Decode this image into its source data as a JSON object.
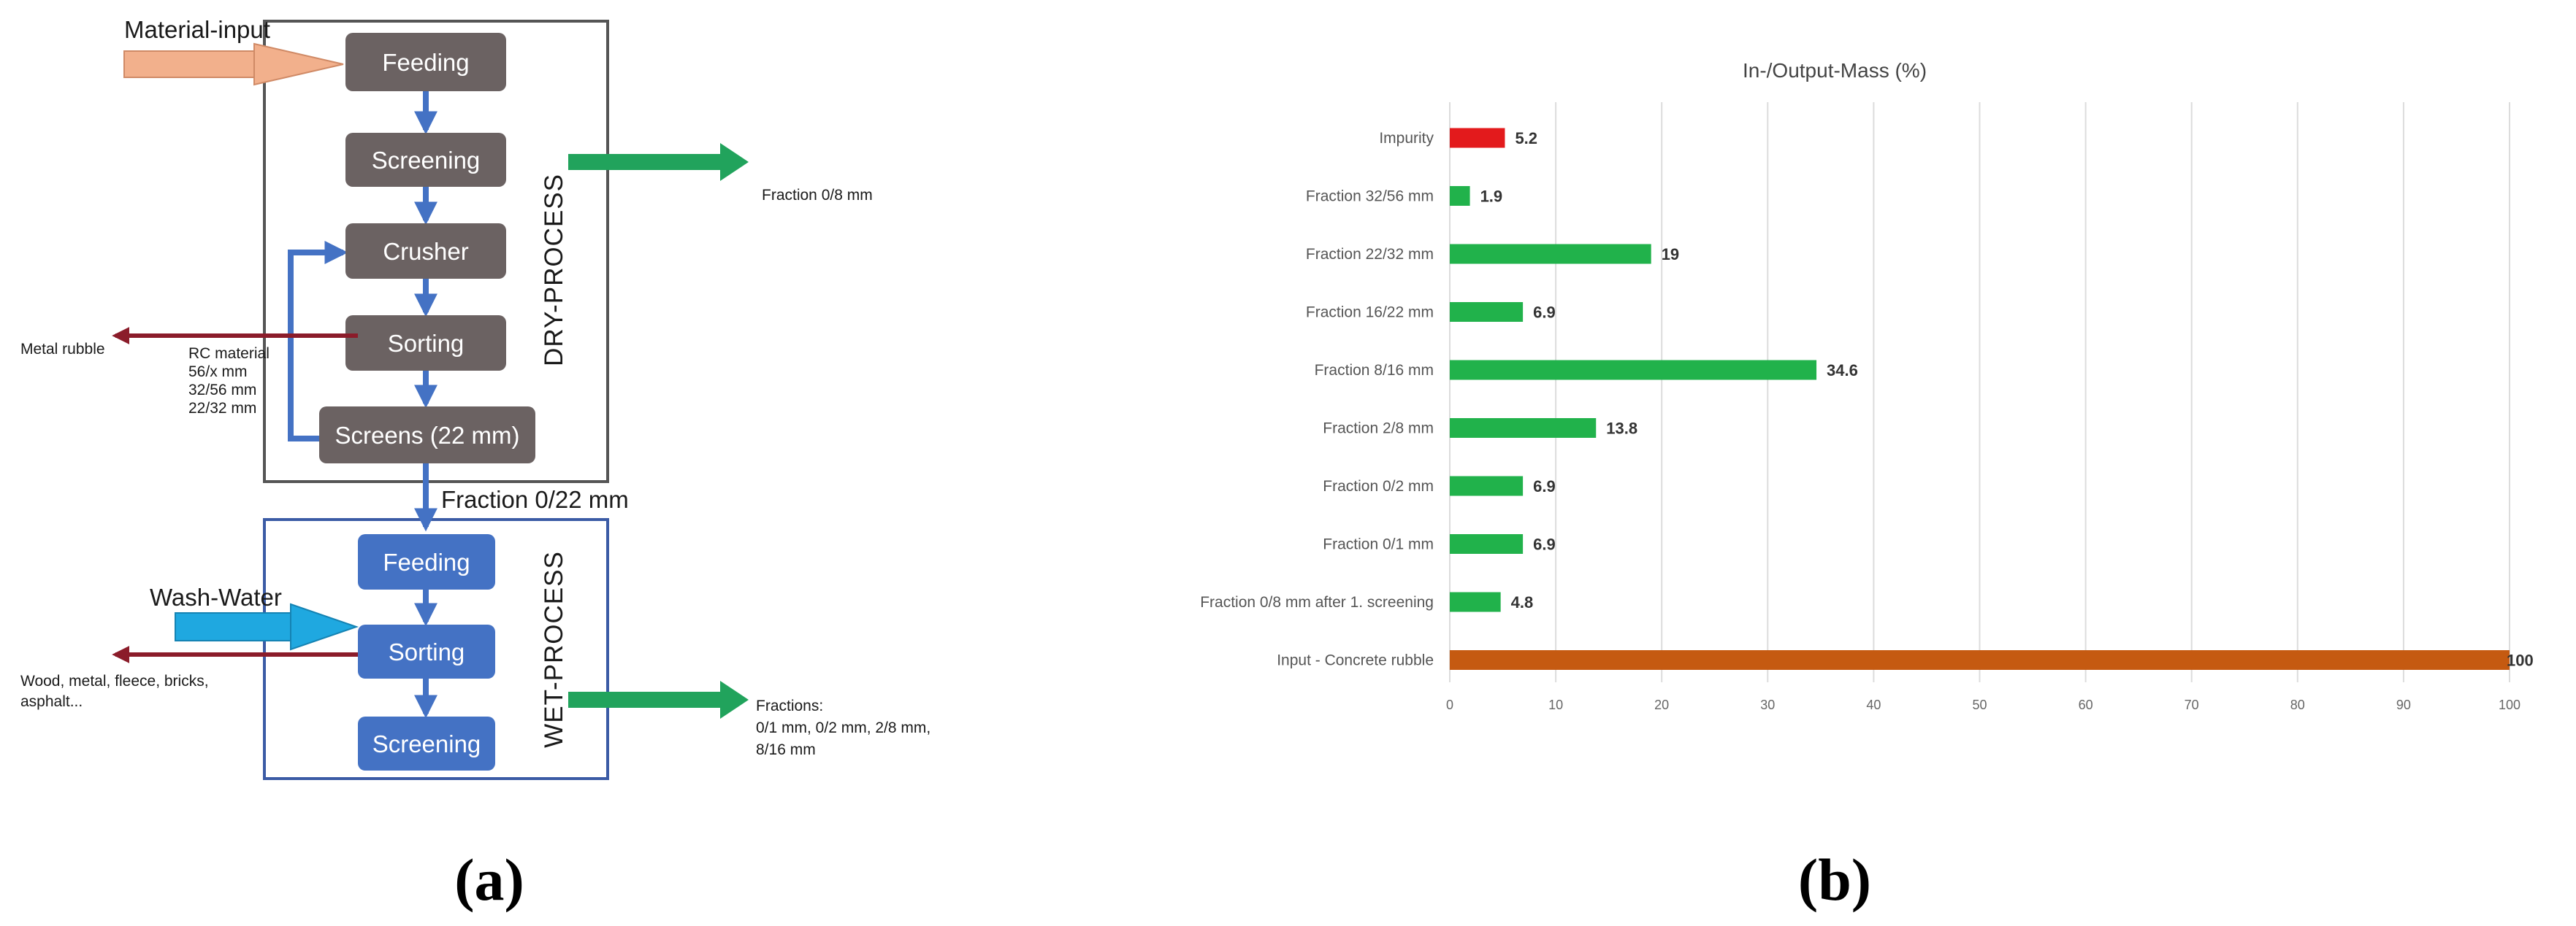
{
  "flowchart": {
    "inputs": {
      "material": "Material-input",
      "wash_water": "Wash-Water"
    },
    "dry_process": {
      "label": "DRY-PROCESS",
      "steps": [
        "Feeding",
        "Screening",
        "Crusher",
        "Sorting",
        "Screens (22 mm)"
      ]
    },
    "wet_process": {
      "label": "WET-PROCESS",
      "steps": [
        "Feeding",
        "Sorting",
        "Screening"
      ]
    },
    "link_label": "Fraction 0/22 mm",
    "outputs": {
      "fraction_08": "Fraction 0/8 mm",
      "metal_rubble": "Metal rubble",
      "rc_material": [
        "RC material",
        "56/x mm",
        "32/56 mm",
        "22/32 mm"
      ],
      "wet_rejects": [
        "Wood, metal, fleece, bricks,",
        "asphalt..."
      ],
      "wet_fractions": [
        "Fractions:",
        "0/1 mm, 0/2 mm, 2/8 mm,",
        "8/16 mm"
      ]
    },
    "colors": {
      "dry_box": "#6b6262",
      "wet_box": "#4472c4",
      "flow_arrow": "#4472c4",
      "output_arrow": "#21a35c",
      "reject_arrow": "#8b1c2a",
      "material_arrow": "#f2b08c",
      "water_arrow": "#1fa8e0"
    }
  },
  "chart_data": {
    "type": "bar",
    "orientation": "horizontal",
    "title": "In-/Output-Mass (%)",
    "categories": [
      "Impurity",
      "Fraction 32/56 mm",
      "Fraction 22/32 mm",
      "Fraction 16/22 mm",
      "Fraction 8/16 mm",
      "Fraction 2/8 mm",
      "Fraction 0/2 mm",
      "Fraction 0/1 mm",
      "Fraction 0/8 mm after 1. screening",
      "Input - Concrete rubble"
    ],
    "values": [
      5.2,
      1.9,
      19,
      6.9,
      34.6,
      13.8,
      6.9,
      6.9,
      4.8,
      100
    ],
    "value_labels": [
      "5.2",
      "1.9",
      "19",
      "6.9",
      "34.6",
      "13.8",
      "6.9",
      "6.9",
      "4.8",
      "100"
    ],
    "colors": [
      "#e31a1c",
      "#21b24b",
      "#21b24b",
      "#21b24b",
      "#21b24b",
      "#21b24b",
      "#21b24b",
      "#21b24b",
      "#21b24b",
      "#c55a11"
    ],
    "xlim": [
      0,
      100
    ],
    "xticks": [
      "0",
      "10",
      "20",
      "30",
      "40",
      "50",
      "60",
      "70",
      "80",
      "90",
      "100"
    ],
    "xlabel": "",
    "ylabel": "",
    "grid": "vertical",
    "legend": "none"
  },
  "panel_labels": [
    "(a)",
    "(b)"
  ]
}
